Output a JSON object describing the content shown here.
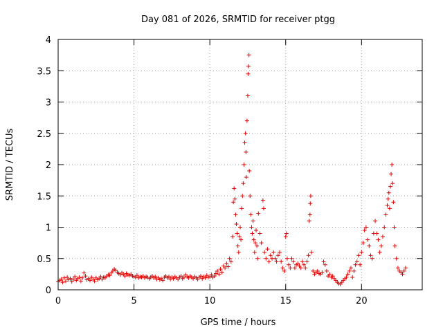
{
  "chart_data": {
    "type": "scatter",
    "title": "Day 081 of 2026, SRMTID for receiver ptgg",
    "xlabel": "GPS time / hours",
    "ylabel": "SRMTID / TECUs",
    "xlim": [
      0,
      24
    ],
    "ylim": [
      0,
      4
    ],
    "x_ticks": [
      0,
      5,
      10,
      15,
      20
    ],
    "x_tick_labels": [
      "0",
      "5",
      "10",
      "15",
      "20"
    ],
    "y_ticks": [
      0,
      0.5,
      1,
      1.5,
      2,
      2.5,
      3,
      3.5,
      4
    ],
    "y_tick_labels": [
      "0",
      "0.5",
      "1",
      "1.5",
      "2",
      "2.5",
      "3",
      "3.5",
      "4"
    ],
    "grid": true,
    "marker": "+",
    "color": "#dd0000",
    "series": [
      {
        "name": "SRMTID",
        "points": [
          [
            0.0,
            0.13
          ],
          [
            0.1,
            0.15
          ],
          [
            0.2,
            0.17
          ],
          [
            0.3,
            0.12
          ],
          [
            0.4,
            0.19
          ],
          [
            0.5,
            0.14
          ],
          [
            0.6,
            0.2
          ],
          [
            0.7,
            0.16
          ],
          [
            0.8,
            0.18
          ],
          [
            0.9,
            0.13
          ],
          [
            1.0,
            0.17
          ],
          [
            1.1,
            0.21
          ],
          [
            1.2,
            0.15
          ],
          [
            1.3,
            0.18
          ],
          [
            1.4,
            0.2
          ],
          [
            1.5,
            0.14
          ],
          [
            1.6,
            0.19
          ],
          [
            1.7,
            0.27
          ],
          [
            1.8,
            0.22
          ],
          [
            1.9,
            0.16
          ],
          [
            2.0,
            0.18
          ],
          [
            2.1,
            0.15
          ],
          [
            2.2,
            0.2
          ],
          [
            2.3,
            0.17
          ],
          [
            2.4,
            0.14
          ],
          [
            2.5,
            0.19
          ],
          [
            2.6,
            0.16
          ],
          [
            2.7,
            0.18
          ],
          [
            2.8,
            0.21
          ],
          [
            2.9,
            0.17
          ],
          [
            3.0,
            0.2
          ],
          [
            3.1,
            0.19
          ],
          [
            3.2,
            0.22
          ],
          [
            3.3,
            0.24
          ],
          [
            3.4,
            0.23
          ],
          [
            3.5,
            0.27
          ],
          [
            3.6,
            0.3
          ],
          [
            3.7,
            0.33
          ],
          [
            3.8,
            0.31
          ],
          [
            3.9,
            0.28
          ],
          [
            4.0,
            0.26
          ],
          [
            4.1,
            0.24
          ],
          [
            4.2,
            0.27
          ],
          [
            4.3,
            0.25
          ],
          [
            4.4,
            0.22
          ],
          [
            4.5,
            0.26
          ],
          [
            4.6,
            0.24
          ],
          [
            4.7,
            0.23
          ],
          [
            4.8,
            0.25
          ],
          [
            4.9,
            0.22
          ],
          [
            5.0,
            0.21
          ],
          [
            5.1,
            0.2
          ],
          [
            5.2,
            0.23
          ],
          [
            5.3,
            0.19
          ],
          [
            5.4,
            0.21
          ],
          [
            5.5,
            0.2
          ],
          [
            5.6,
            0.22
          ],
          [
            5.7,
            0.19
          ],
          [
            5.8,
            0.21
          ],
          [
            5.9,
            0.2
          ],
          [
            6.0,
            0.18
          ],
          [
            6.1,
            0.2
          ],
          [
            6.2,
            0.22
          ],
          [
            6.3,
            0.19
          ],
          [
            6.4,
            0.21
          ],
          [
            6.5,
            0.17
          ],
          [
            6.6,
            0.19
          ],
          [
            6.7,
            0.16
          ],
          [
            6.8,
            0.18
          ],
          [
            6.9,
            0.15
          ],
          [
            7.0,
            0.2
          ],
          [
            7.1,
            0.22
          ],
          [
            7.2,
            0.19
          ],
          [
            7.3,
            0.21
          ],
          [
            7.4,
            0.17
          ],
          [
            7.5,
            0.2
          ],
          [
            7.6,
            0.18
          ],
          [
            7.7,
            0.21
          ],
          [
            7.8,
            0.19
          ],
          [
            7.9,
            0.17
          ],
          [
            8.0,
            0.2
          ],
          [
            8.1,
            0.22
          ],
          [
            8.2,
            0.18
          ],
          [
            8.3,
            0.2
          ],
          [
            8.4,
            0.24
          ],
          [
            8.5,
            0.21
          ],
          [
            8.6,
            0.19
          ],
          [
            8.7,
            0.22
          ],
          [
            8.8,
            0.2
          ],
          [
            8.9,
            0.18
          ],
          [
            9.0,
            0.21
          ],
          [
            9.1,
            0.19
          ],
          [
            9.2,
            0.17
          ],
          [
            9.3,
            0.2
          ],
          [
            9.4,
            0.22
          ],
          [
            9.5,
            0.18
          ],
          [
            9.6,
            0.21
          ],
          [
            9.7,
            0.19
          ],
          [
            9.8,
            0.23
          ],
          [
            9.9,
            0.2
          ],
          [
            10.0,
            0.21
          ],
          [
            10.1,
            0.24
          ],
          [
            10.2,
            0.2
          ],
          [
            10.3,
            0.22
          ],
          [
            10.4,
            0.26
          ],
          [
            10.5,
            0.3
          ],
          [
            10.6,
            0.25
          ],
          [
            10.7,
            0.33
          ],
          [
            10.8,
            0.28
          ],
          [
            10.9,
            0.38
          ],
          [
            11.0,
            0.35
          ],
          [
            11.1,
            0.42
          ],
          [
            11.2,
            0.37
          ],
          [
            11.3,
            0.5
          ],
          [
            11.4,
            0.45
          ],
          [
            11.5,
            0.85
          ],
          [
            11.55,
            1.4
          ],
          [
            11.6,
            1.62
          ],
          [
            11.65,
            1.45
          ],
          [
            11.7,
            1.2
          ],
          [
            11.75,
            1.05
          ],
          [
            11.8,
            0.9
          ],
          [
            11.85,
            0.7
          ],
          [
            11.9,
            0.6
          ],
          [
            11.95,
            0.85
          ],
          [
            12.0,
            1.0
          ],
          [
            12.05,
            0.8
          ],
          [
            12.1,
            1.3
          ],
          [
            12.15,
            1.5
          ],
          [
            12.2,
            1.7
          ],
          [
            12.25,
            2.0
          ],
          [
            12.3,
            2.35
          ],
          [
            12.35,
            2.5
          ],
          [
            12.38,
            2.2
          ],
          [
            12.4,
            1.8
          ],
          [
            12.45,
            2.7
          ],
          [
            12.5,
            3.1
          ],
          [
            12.52,
            3.45
          ],
          [
            12.55,
            3.57
          ],
          [
            12.58,
            3.75
          ],
          [
            12.6,
            1.9
          ],
          [
            12.65,
            1.5
          ],
          [
            12.7,
            1.2
          ],
          [
            12.75,
            1.0
          ],
          [
            12.8,
            0.9
          ],
          [
            12.85,
            1.1
          ],
          [
            12.9,
            0.8
          ],
          [
            12.95,
            0.6
          ],
          [
            13.0,
            0.75
          ],
          [
            13.05,
            0.95
          ],
          [
            13.1,
            0.7
          ],
          [
            13.15,
            0.5
          ],
          [
            13.2,
            1.22
          ],
          [
            13.3,
            0.9
          ],
          [
            13.4,
            0.75
          ],
          [
            13.5,
            1.43
          ],
          [
            13.55,
            1.3
          ],
          [
            13.6,
            0.6
          ],
          [
            13.7,
            0.5
          ],
          [
            13.8,
            0.65
          ],
          [
            13.9,
            0.45
          ],
          [
            14.0,
            0.55
          ],
          [
            14.1,
            0.5
          ],
          [
            14.2,
            0.6
          ],
          [
            14.3,
            0.5
          ],
          [
            14.4,
            0.45
          ],
          [
            14.5,
            0.55
          ],
          [
            14.6,
            0.6
          ],
          [
            14.7,
            0.45
          ],
          [
            14.8,
            0.35
          ],
          [
            14.9,
            0.3
          ],
          [
            15.0,
            0.85
          ],
          [
            15.05,
            0.9
          ],
          [
            15.1,
            0.5
          ],
          [
            15.2,
            0.4
          ],
          [
            15.3,
            0.35
          ],
          [
            15.4,
            0.5
          ],
          [
            15.5,
            0.45
          ],
          [
            15.6,
            0.35
          ],
          [
            15.7,
            0.4
          ],
          [
            15.8,
            0.42
          ],
          [
            15.9,
            0.38
          ],
          [
            16.0,
            0.35
          ],
          [
            16.1,
            0.45
          ],
          [
            16.2,
            0.4
          ],
          [
            16.3,
            0.35
          ],
          [
            16.4,
            0.45
          ],
          [
            16.5,
            0.55
          ],
          [
            16.55,
            1.1
          ],
          [
            16.6,
            1.2
          ],
          [
            16.62,
            1.38
          ],
          [
            16.65,
            1.5
          ],
          [
            16.7,
            0.6
          ],
          [
            16.8,
            0.3
          ],
          [
            16.9,
            0.25
          ],
          [
            17.0,
            0.28
          ],
          [
            17.1,
            0.3
          ],
          [
            17.2,
            0.26
          ],
          [
            17.3,
            0.25
          ],
          [
            17.4,
            0.28
          ],
          [
            17.5,
            0.45
          ],
          [
            17.6,
            0.4
          ],
          [
            17.7,
            0.3
          ],
          [
            17.8,
            0.22
          ],
          [
            17.9,
            0.25
          ],
          [
            18.0,
            0.2
          ],
          [
            18.1,
            0.22
          ],
          [
            18.2,
            0.18
          ],
          [
            18.3,
            0.15
          ],
          [
            18.4,
            0.12
          ],
          [
            18.5,
            0.1
          ],
          [
            18.6,
            0.09
          ],
          [
            18.7,
            0.12
          ],
          [
            18.8,
            0.15
          ],
          [
            18.9,
            0.18
          ],
          [
            19.0,
            0.2
          ],
          [
            19.1,
            0.25
          ],
          [
            19.2,
            0.3
          ],
          [
            19.3,
            0.35
          ],
          [
            19.4,
            0.2
          ],
          [
            19.5,
            0.3
          ],
          [
            19.6,
            0.4
          ],
          [
            19.7,
            0.45
          ],
          [
            19.8,
            0.55
          ],
          [
            19.9,
            0.4
          ],
          [
            20.0,
            0.6
          ],
          [
            20.1,
            0.75
          ],
          [
            20.2,
            0.95
          ],
          [
            20.3,
            1.0
          ],
          [
            20.4,
            0.8
          ],
          [
            20.5,
            0.7
          ],
          [
            20.6,
            0.55
          ],
          [
            20.7,
            0.5
          ],
          [
            20.8,
            0.9
          ],
          [
            20.9,
            1.1
          ],
          [
            21.0,
            0.9
          ],
          [
            21.1,
            0.8
          ],
          [
            21.2,
            0.6
          ],
          [
            21.3,
            0.7
          ],
          [
            21.4,
            0.85
          ],
          [
            21.5,
            1.0
          ],
          [
            21.6,
            1.2
          ],
          [
            21.7,
            1.35
          ],
          [
            21.75,
            1.45
          ],
          [
            21.8,
            1.55
          ],
          [
            21.85,
            1.3
          ],
          [
            21.9,
            1.65
          ],
          [
            21.95,
            1.85
          ],
          [
            22.0,
            2.0
          ],
          [
            22.05,
            1.7
          ],
          [
            22.1,
            1.4
          ],
          [
            22.15,
            1.0
          ],
          [
            22.2,
            0.7
          ],
          [
            22.3,
            0.5
          ],
          [
            22.4,
            0.35
          ],
          [
            22.5,
            0.3
          ],
          [
            22.6,
            0.28
          ],
          [
            22.7,
            0.25
          ],
          [
            22.8,
            0.3
          ],
          [
            22.9,
            0.35
          ]
        ]
      }
    ]
  }
}
